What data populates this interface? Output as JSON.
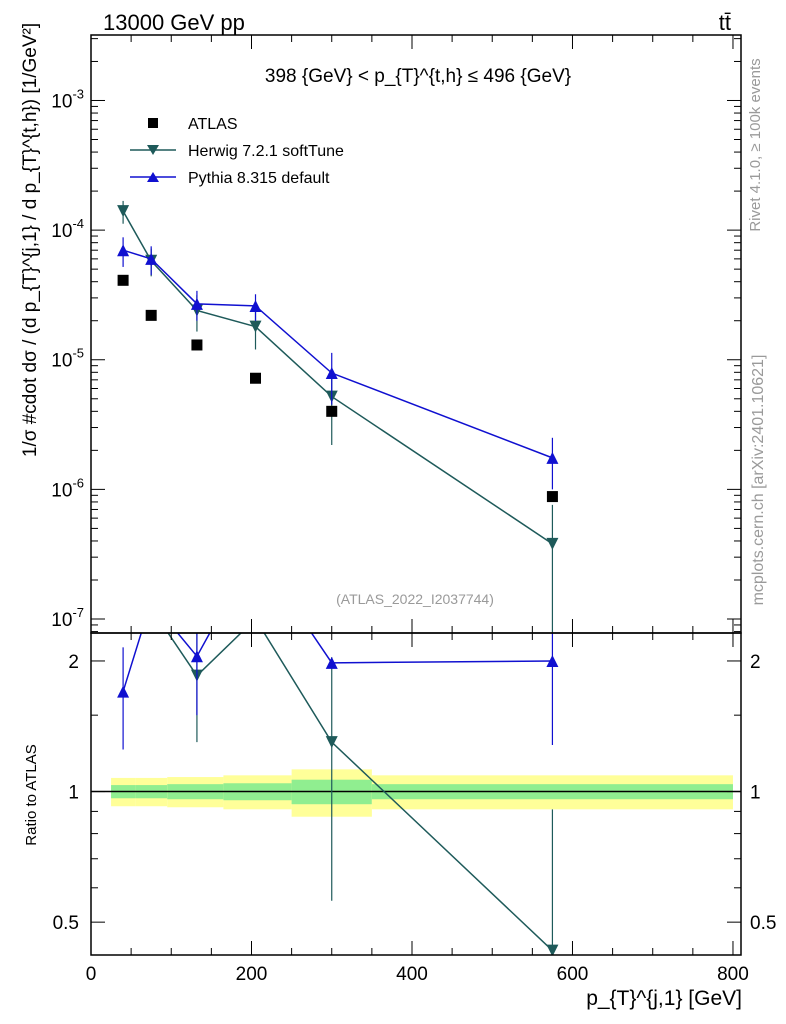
{
  "header": {
    "left": "13000 GeV pp",
    "right": "tt̄"
  },
  "side": {
    "rivet": "Rivet 4.1.0, ≥ 100k events",
    "mcplots": "mcplots.cern.ch [arXiv:2401.10621]"
  },
  "chart_data": {
    "type": "scatter",
    "title": "398 {GeV} < p_{T}^{t,h} ≤ 496 {GeV}",
    "watermark": "(ATLAS_2022_I2037744)",
    "xlabel": "p_{T}^{j,1} [GeV]",
    "ylabel": "1/σ #cdot dσ / (d p_{T}^{j,1} / d p_{T}^{t,h}) [1/GeV²]",
    "ratio_ylabel": "Ratio to ATLAS",
    "xlim": [
      0,
      810
    ],
    "ylim": [
      7.8e-08,
      0.0032
    ],
    "yscale": "log",
    "ratio_ylim": [
      0.42,
      2.32
    ],
    "ratio_yscale": "log",
    "x_ticks": [
      0,
      200,
      400,
      600,
      800
    ],
    "y_ticks": [
      1e-07,
      1e-06,
      1e-05,
      0.0001,
      0.001
    ],
    "ratio_ticks": [
      0.5,
      1,
      2
    ],
    "legend": [
      "ATLAS",
      "Herwig 7.2.1 softTune",
      "Pythia 8.315 default"
    ],
    "data": {
      "name": "ATLAS",
      "x": [
        40,
        75,
        132,
        205,
        300,
        575
      ],
      "y": [
        4.1e-05,
        2.2e-05,
        1.3e-05,
        7.2e-06,
        4e-06,
        8.8e-07
      ]
    },
    "band": {
      "edges": [
        25,
        55,
        95,
        165,
        250,
        350,
        800
      ],
      "stat": [
        0.035,
        0.035,
        0.04,
        0.045,
        0.065,
        0.04
      ],
      "total": [
        0.075,
        0.075,
        0.08,
        0.09,
        0.125,
        0.09
      ]
    },
    "series": [
      {
        "name": "Herwig 7.2.1 softTune",
        "color": "#1e5a5a",
        "marker": "triangle-down",
        "x": [
          40,
          75,
          132,
          205,
          300,
          575
        ],
        "y": [
          0.00014,
          5.8e-05,
          2.4e-05,
          1.8e-05,
          5.2e-06,
          3.8e-07
        ],
        "yerr": [
          2.8e-05,
          1.4e-05,
          7.5e-06,
          6e-06,
          3e-06,
          3.8e-07
        ],
        "ratio": [
          3.4,
          2.65,
          1.85,
          2.5,
          1.3,
          0.43
        ],
        "ratio_err": [
          0.0,
          0.0,
          0.55,
          0.0,
          0.74,
          0.48
        ]
      },
      {
        "name": "Pythia 8.315 default",
        "color": "#1010d0",
        "marker": "triangle-up",
        "x": [
          40,
          75,
          132,
          205,
          300,
          575
        ],
        "y": [
          7e-05,
          6e-05,
          2.7e-05,
          2.6e-05,
          7.9e-06,
          1.75e-06
        ],
        "yerr": [
          1.8e-05,
          1.5e-05,
          7e-06,
          6e-06,
          3.4e-06,
          7.5e-07
        ],
        "ratio": [
          1.7,
          2.75,
          2.05,
          3.6,
          1.98,
          2.0
        ],
        "ratio_err": [
          0.45,
          0.0,
          0.55,
          0.0,
          0.0,
          0.72
        ]
      }
    ]
  }
}
